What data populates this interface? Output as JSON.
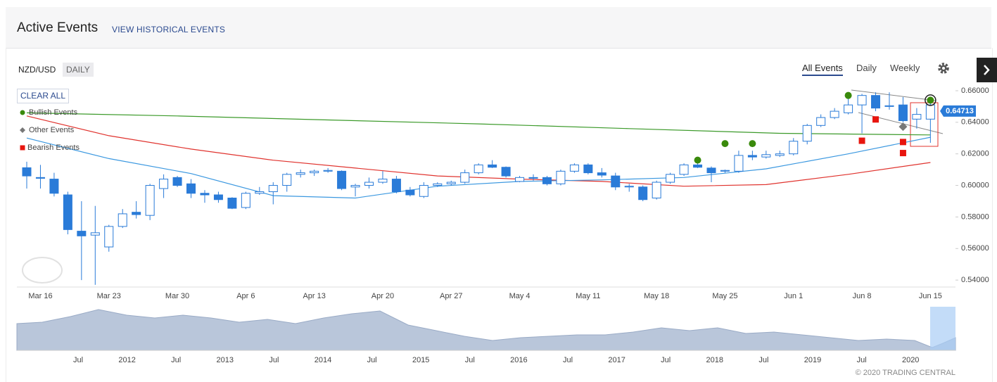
{
  "header": {
    "title": "Active Events",
    "link": "VIEW HISTORICAL EVENTS"
  },
  "toolbar": {
    "symbol": "NZD/USD",
    "period": "DAILY",
    "tabs": [
      "All Events",
      "Daily",
      "Weekly"
    ],
    "clear": "CLEAR ALL"
  },
  "footer": {
    "copyright": "© 2020 TRADING CENTRAL"
  },
  "navigator": {
    "labels": [
      "Jul",
      "2012",
      "Jul",
      "2013",
      "Jul",
      "2014",
      "Jul",
      "2015",
      "Jul",
      "2016",
      "Jul",
      "2017",
      "Jul",
      "2018",
      "Jul",
      "2019",
      "Jul",
      "2020"
    ]
  },
  "chart_data": {
    "type": "candlestick",
    "categories": [
      null,
      "Mar 16",
      null,
      null,
      null,
      null,
      "Mar 23",
      null,
      null,
      null,
      null,
      "Mar 30",
      null,
      null,
      null,
      null,
      "Apr 6",
      null,
      null,
      null,
      null,
      "Apr 13",
      null,
      null,
      null,
      null,
      "Apr 20",
      null,
      null,
      null,
      null,
      "Apr 27",
      null,
      null,
      null,
      null,
      "May 4",
      null,
      null,
      null,
      null,
      "May 11",
      null,
      null,
      null,
      null,
      "May 18",
      null,
      null,
      null,
      null,
      "May 25",
      null,
      null,
      null,
      null,
      "Jun 1",
      null,
      null,
      null,
      null,
      "Jun 8",
      null,
      null,
      null,
      null,
      "Jun 15"
    ],
    "open": [
      0.6112,
      0.605,
      0.604,
      0.594,
      0.571,
      0.5685,
      0.561,
      0.574,
      0.583,
      0.581,
      0.598,
      0.605,
      0.601,
      0.595,
      0.594,
      0.592,
      0.586,
      0.595,
      0.596,
      0.6,
      0.607,
      0.608,
      0.609,
      0.609,
      0.599,
      0.6,
      0.602,
      0.604,
      0.597,
      0.593,
      0.6,
      0.601,
      0.602,
      0.608,
      0.613,
      0.6115,
      0.6025,
      0.605,
      0.605,
      0.601,
      0.609,
      0.613,
      0.608,
      0.606,
      0.599,
      0.599,
      0.592,
      0.602,
      0.607,
      0.613,
      0.611,
      0.609,
      0.609,
      0.619,
      0.618,
      0.619,
      0.62,
      0.628,
      0.638,
      0.643,
      0.646,
      0.651,
      0.657,
      0.65,
      0.651,
      0.642,
      0.642
    ],
    "high": [
      0.615,
      0.613,
      0.608,
      0.596,
      0.59,
      0.587,
      0.575,
      0.585,
      0.59,
      0.601,
      0.607,
      0.606,
      0.604,
      0.597,
      0.596,
      0.5925,
      0.596,
      0.599,
      0.602,
      0.608,
      0.61,
      0.61,
      0.611,
      0.6095,
      0.601,
      0.605,
      0.609,
      0.606,
      0.599,
      0.602,
      0.602,
      0.603,
      0.61,
      0.614,
      0.616,
      0.612,
      0.606,
      0.607,
      0.606,
      0.61,
      0.614,
      0.614,
      0.611,
      0.608,
      0.601,
      0.6,
      0.603,
      0.608,
      0.614,
      0.614,
      0.612,
      0.61,
      0.622,
      0.622,
      0.622,
      0.622,
      0.63,
      0.639,
      0.645,
      0.649,
      0.656,
      0.658,
      0.659,
      0.659,
      0.656,
      0.649,
      0.654
    ],
    "low": [
      0.598,
      0.598,
      0.593,
      0.569,
      0.54,
      0.537,
      0.558,
      0.573,
      0.579,
      0.578,
      0.592,
      0.599,
      0.592,
      0.589,
      0.589,
      0.585,
      0.585,
      0.594,
      0.588,
      0.596,
      0.605,
      0.606,
      0.608,
      0.597,
      0.593,
      0.598,
      0.601,
      0.595,
      0.593,
      0.592,
      0.599,
      0.6,
      0.601,
      0.607,
      0.611,
      0.605,
      0.602,
      0.603,
      0.6,
      0.6,
      0.608,
      0.607,
      0.605,
      0.597,
      0.596,
      0.59,
      0.591,
      0.601,
      0.606,
      0.611,
      0.602,
      0.608,
      0.608,
      0.616,
      0.617,
      0.618,
      0.619,
      0.626,
      0.637,
      0.642,
      0.645,
      0.633,
      0.647,
      0.648,
      0.64,
      0.636,
      0.627
    ],
    "close": [
      0.606,
      0.6045,
      0.595,
      0.572,
      0.568,
      0.57,
      0.574,
      0.582,
      0.5815,
      0.6,
      0.604,
      0.6,
      0.595,
      0.594,
      0.591,
      0.5855,
      0.595,
      0.596,
      0.6,
      0.607,
      0.608,
      0.609,
      0.6095,
      0.598,
      0.6,
      0.602,
      0.604,
      0.596,
      0.594,
      0.6,
      0.601,
      0.602,
      0.608,
      0.613,
      0.6115,
      0.606,
      0.605,
      0.6045,
      0.601,
      0.609,
      0.613,
      0.608,
      0.6065,
      0.599,
      0.5995,
      0.591,
      0.602,
      0.607,
      0.613,
      0.6115,
      0.608,
      0.6095,
      0.619,
      0.618,
      0.6195,
      0.62,
      0.628,
      0.638,
      0.643,
      0.647,
      0.651,
      0.657,
      0.649,
      0.6505,
      0.641,
      0.645,
      0.651
    ],
    "up_color": "#ffffff",
    "down_color": "#2a7bd8",
    "edge_color": "#2a7bd8",
    "lines": [
      {
        "color": "#3c9a2a",
        "x": [
          0,
          11,
          22,
          33,
          44,
          55,
          66
        ],
        "values": [
          0.646,
          0.644,
          0.6415,
          0.639,
          0.636,
          0.633,
          0.632
        ]
      },
      {
        "color": "#e0332e",
        "x": [
          0,
          6,
          12,
          18,
          24,
          30,
          36,
          42,
          48,
          54,
          60,
          66
        ],
        "values": [
          0.644,
          0.6315,
          0.623,
          0.616,
          0.611,
          0.606,
          0.604,
          0.6025,
          0.5995,
          0.6005,
          0.607,
          0.6145
        ]
      },
      {
        "color": "#3b98e0",
        "x": [
          0,
          6,
          12,
          18,
          24,
          30,
          36,
          42,
          48,
          54,
          60,
          66
        ],
        "values": [
          0.63,
          0.617,
          0.6075,
          0.5935,
          0.592,
          0.5995,
          0.6025,
          0.6035,
          0.605,
          0.6105,
          0.62,
          0.6305
        ]
      }
    ],
    "events": [
      {
        "name": "Bullish Events",
        "shape": "circle",
        "color": "#3a8a0c",
        "x": [
          49,
          51,
          53,
          60,
          66
        ],
        "values": [
          0.616,
          0.6265,
          0.6265,
          0.657,
          0.654
        ]
      },
      {
        "name": "Other Events",
        "shape": "diamond",
        "color": "#777777",
        "x": [
          64
        ],
        "values": [
          0.6372
        ]
      },
      {
        "name": "Bearish Events",
        "shape": "square",
        "color": "#e8150e",
        "x": [
          61,
          62,
          64,
          64
        ],
        "values": [
          0.6283,
          0.6418,
          0.6275,
          0.6205
        ]
      }
    ],
    "last_price": {
      "value": 0.64713,
      "label": "0.64713"
    },
    "ylim": [
      0.5356,
      0.6631
    ],
    "yticks": [
      {
        "value": 0.66,
        "label": "0.66000"
      },
      {
        "value": 0.64,
        "label": "0.64000"
      },
      {
        "value": 0.62,
        "label": "0.62000"
      },
      {
        "value": 0.6,
        "label": "0.60000"
      },
      {
        "value": 0.58,
        "label": "0.58000"
      },
      {
        "value": 0.56,
        "label": "0.56000"
      },
      {
        "value": 0.54,
        "label": "0.54000"
      }
    ],
    "grid": false
  }
}
